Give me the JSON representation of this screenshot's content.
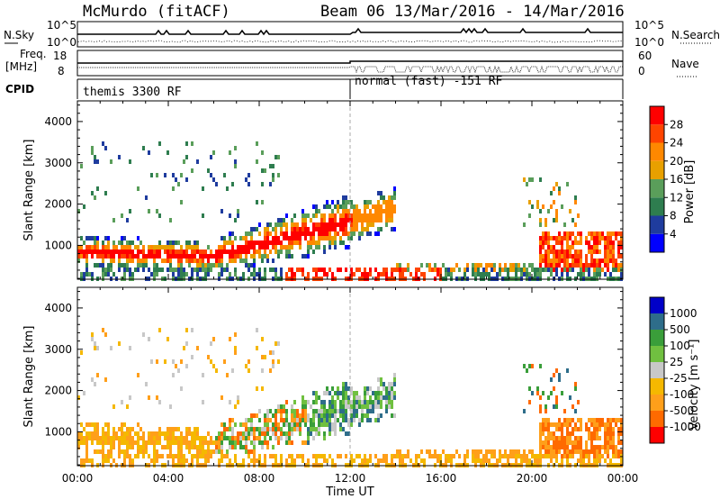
{
  "header": {
    "station": "McMurdo (fitACF)",
    "beam_date": "Beam 06  13/Mar/2016 - 14/Mar/2016"
  },
  "strip": {
    "nsky_label": "N.Sky",
    "nsky_top": "10^5",
    "nsky_bottom": "10^0",
    "nsearch_label": "N.Search",
    "nsearch_top": "10^5",
    "nsearch_bottom": "10^0",
    "freq_label": "Freq.",
    "freq_unit": "[MHz]",
    "freq_top": "18",
    "freq_bottom": "8",
    "nave_label": "Nave",
    "nave_top": "60",
    "nave_bottom": "0",
    "cpid_label": "CPID",
    "cpid_mode1": "themis 3300 RF",
    "cpid_mode2": "normal (fast) -151 RF"
  },
  "colors": {
    "power": [
      "#0000ff",
      "#1f3c9e",
      "#2e7d4f",
      "#5a9e5a",
      "#e8a000",
      "#ff8800",
      "#ff4400",
      "#ff0000"
    ],
    "velocity": [
      "#ff0000",
      "#ff6a00",
      "#ff9f1a",
      "#f5b800",
      "#c8c8c8",
      "#70c040",
      "#3a9e3a",
      "#2e6d8a",
      "#0000c8"
    ]
  },
  "chart_data": [
    {
      "type": "heatmap",
      "name": "power",
      "xlabel": "",
      "ylabel": "Slant Range [km]",
      "x_ticks": [
        "00:00",
        "04:00",
        "08:00",
        "12:00",
        "16:00",
        "20:00",
        "00:00"
      ],
      "y_ticks": [
        "1000",
        "2000",
        "3000",
        "4000"
      ],
      "xlim_hours": [
        0,
        24
      ],
      "ylim_km": [
        180,
        4500
      ],
      "colorbar_label": "Power [dB]",
      "colorbar_ticks": [
        "4",
        "8",
        "12",
        "16",
        "20",
        "24",
        "28"
      ],
      "colorbar_range": [
        0,
        30
      ]
    },
    {
      "type": "heatmap",
      "name": "velocity",
      "xlabel": "Time UT",
      "ylabel": "Slant Range [km]",
      "x_ticks": [
        "00:00",
        "04:00",
        "08:00",
        "12:00",
        "16:00",
        "20:00",
        "00:00"
      ],
      "y_ticks": [
        "1000",
        "2000",
        "3000",
        "4000"
      ],
      "xlim_hours": [
        0,
        24
      ],
      "ylim_km": [
        180,
        4500
      ],
      "colorbar_label": "Velocity [m s⁻¹]",
      "colorbar_ticks": [
        "1000",
        "500",
        "100",
        "25",
        "-25",
        "-100",
        "-500",
        "-1000"
      ]
    }
  ]
}
